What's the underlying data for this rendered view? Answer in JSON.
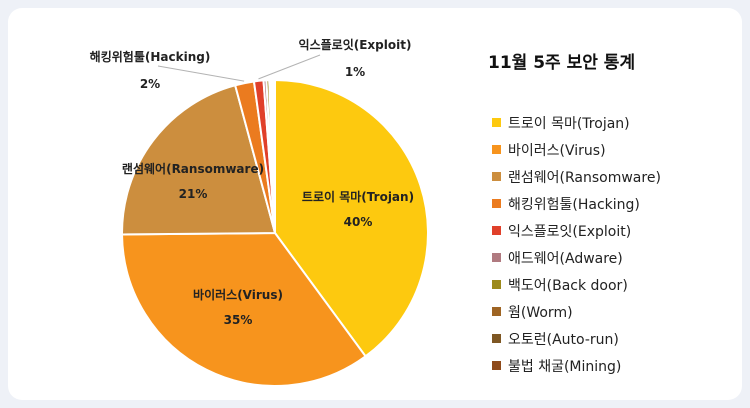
{
  "chart_data": {
    "type": "pie",
    "title": "11월 5주 보안 통계",
    "categories": [
      "트로이 목마(Trojan)",
      "바이러스(Virus)",
      "랜섬웨어(Ransomware)",
      "해킹위험툴(Hacking)",
      "익스플로잇(Exploit)",
      "애드웨어(Adware)",
      "백도어(Back door)",
      "웜(Worm)",
      "오토런(Auto-run)",
      "불법 채굴(Mining)"
    ],
    "values": [
      40,
      35,
      21,
      2,
      1,
      0.3,
      0.3,
      0.2,
      0.2,
      0.2
    ],
    "colors": [
      "#FDC90F",
      "#F7941D",
      "#CC8E3E",
      "#EB7B1F",
      "#E0402A",
      "#B07A80",
      "#9C8A1C",
      "#9E6423",
      "#7E5723",
      "#8E4A1A"
    ],
    "data_labels": [
      {
        "name": "트로이 목마(Trojan)",
        "value": "40%"
      },
      {
        "name": "바이러스(Virus)",
        "value": "35%"
      },
      {
        "name": "랜섬웨어(Ransomware)",
        "value": "21%"
      },
      {
        "name": "해킹위험툴(Hacking)",
        "value": "2%"
      },
      {
        "name": "익스플로잇(Exploit)",
        "value": "1%"
      }
    ],
    "legend_placement": "right"
  }
}
